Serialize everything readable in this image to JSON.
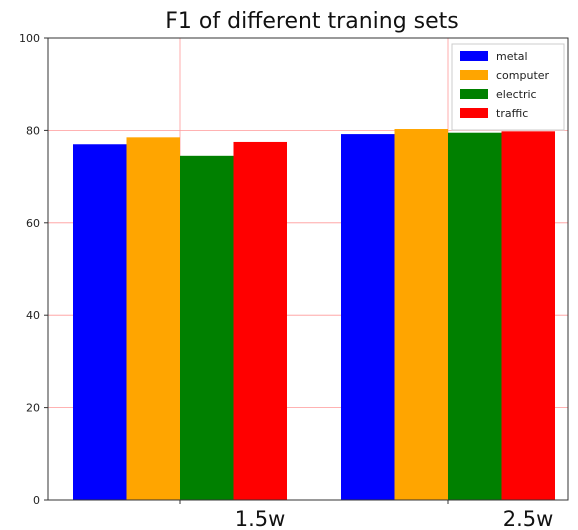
{
  "chart_data": {
    "type": "bar",
    "title": "F1 of different traning sets",
    "xlabel": "",
    "ylabel": "",
    "categories": [
      "1.5w",
      "2.5w"
    ],
    "series": [
      {
        "name": "metal",
        "color": "#0000ff",
        "values": [
          77.0,
          79.2
        ]
      },
      {
        "name": "computer",
        "color": "#ffa500",
        "values": [
          78.5,
          80.3
        ]
      },
      {
        "name": "electric",
        "color": "#008000",
        "values": [
          74.5,
          79.5
        ]
      },
      {
        "name": "traffic",
        "color": "#ff0000",
        "values": [
          77.5,
          79.8
        ]
      }
    ],
    "ylim": [
      0,
      100
    ],
    "yticks": [
      "0",
      "20",
      "40",
      "60",
      "80",
      "100"
    ],
    "grid": true,
    "grid_color": "#ff9999",
    "legend_position": "top-right"
  }
}
